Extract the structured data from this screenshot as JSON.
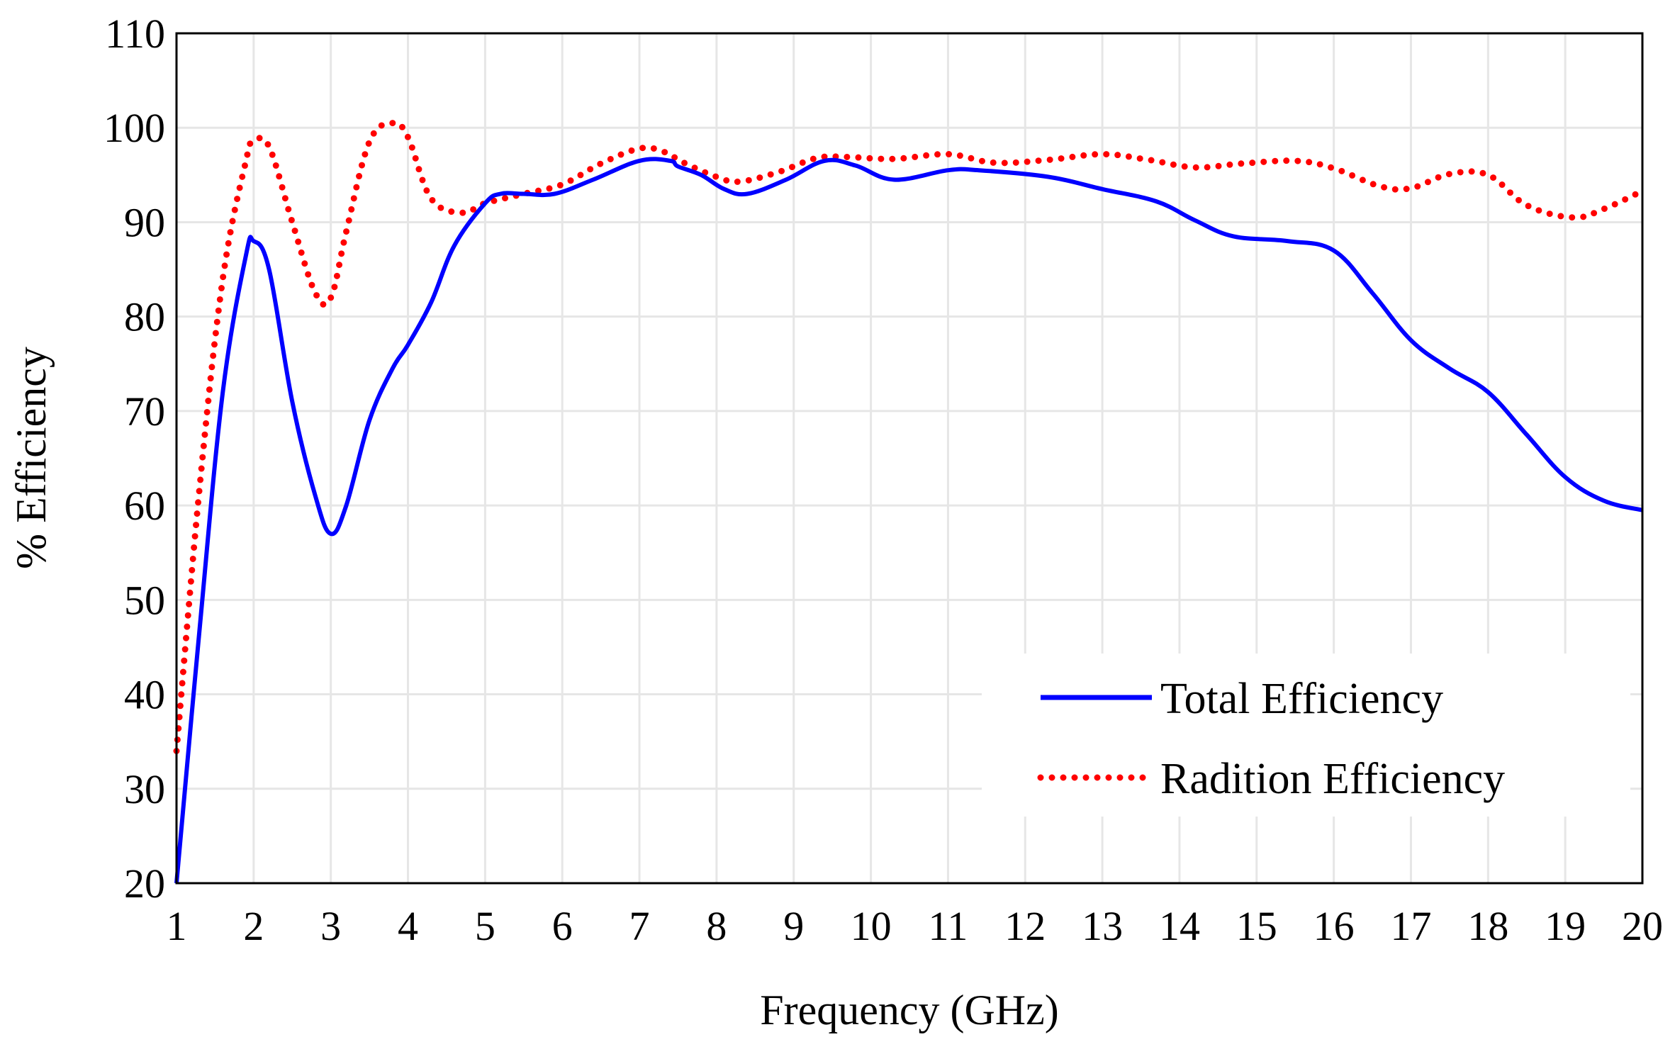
{
  "chart_data": {
    "type": "line",
    "title": "",
    "xlabel": "Frequency (GHz)",
    "ylabel": "% Efficiency",
    "xlim": [
      1,
      20
    ],
    "ylim": [
      20,
      110
    ],
    "x_ticks": [
      1,
      2,
      3,
      4,
      5,
      6,
      7,
      8,
      9,
      10,
      11,
      12,
      13,
      14,
      15,
      16,
      17,
      18,
      19,
      20
    ],
    "x_tick_labels": [
      "1",
      "2",
      "3",
      "4",
      "5",
      "6",
      "7",
      "8",
      "9",
      "10",
      "11",
      "12",
      "13",
      "14",
      "15",
      "16",
      "17",
      "18",
      "19",
      "20"
    ],
    "y_ticks": [
      20,
      30,
      40,
      50,
      60,
      70,
      80,
      90,
      100,
      110
    ],
    "y_tick_labels": [
      "20",
      "30",
      "40",
      "50",
      "60",
      "70",
      "80",
      "90",
      "100",
      "110"
    ],
    "grid": true,
    "legend_position": "bottom-right",
    "series": [
      {
        "name": "Total Efficiency",
        "style": "solid",
        "color": "#0000ff",
        "x": [
          1,
          1.3,
          1.6,
          1.9,
          2,
          2.2,
          2.5,
          2.8,
          3,
          3.2,
          3.5,
          3.8,
          4,
          4.3,
          4.6,
          5,
          5.2,
          5.5,
          5.9,
          6.4,
          7,
          7.4,
          7.5,
          7.8,
          8.1,
          8.4,
          8.9,
          9.4,
          9.8,
          10.3,
          11,
          11.4,
          12.3,
          13,
          13.7,
          14.2,
          14.7,
          15.4,
          16,
          16.5,
          17,
          17.5,
          18,
          18.5,
          19,
          19.5,
          20
        ],
        "values": [
          20,
          47,
          72,
          86.5,
          88,
          85,
          71,
          61,
          57,
          60,
          69,
          74.5,
          77,
          81.5,
          87.5,
          92,
          93,
          93,
          93,
          94.5,
          96.5,
          96.5,
          95.9,
          95,
          93.5,
          93,
          94.5,
          96.5,
          96,
          94.5,
          95.5,
          95.5,
          94.8,
          93.5,
          92.2,
          90.2,
          88.5,
          88,
          87,
          82.5,
          77.5,
          74.5,
          72,
          67.5,
          63,
          60.5,
          59.5
        ]
      },
      {
        "name": "Radition Efficiency",
        "style": "dotted",
        "color": "#ff0000",
        "x": [
          1,
          1.3,
          1.6,
          1.9,
          2,
          2.2,
          2.5,
          2.8,
          3,
          3.2,
          3.5,
          3.8,
          4,
          4.3,
          4.7,
          5,
          5.5,
          6,
          6.5,
          7,
          7.3,
          7.6,
          8,
          8.3,
          8.8,
          9.3,
          9.7,
          10.3,
          11,
          11.6,
          12.3,
          13,
          13.6,
          14.2,
          14.8,
          15.5,
          16,
          16.6,
          17,
          17.5,
          18,
          18.5,
          19.1,
          19.5,
          20
        ],
        "values": [
          34,
          62,
          84,
          96.5,
          98.5,
          98,
          90,
          82.5,
          82,
          89,
          98.5,
          100.5,
          99,
          92.5,
          91,
          92,
          93,
          94,
          96.2,
          97.8,
          97.5,
          96.2,
          94.8,
          94.3,
          95.3,
          96.8,
          96.9,
          96.7,
          97.2,
          96.3,
          96.6,
          97.2,
          96.6,
          95.8,
          96.2,
          96.5,
          95.7,
          93.8,
          93.6,
          95.1,
          95,
          91.8,
          90.5,
          91.4,
          93.3
        ]
      }
    ]
  }
}
